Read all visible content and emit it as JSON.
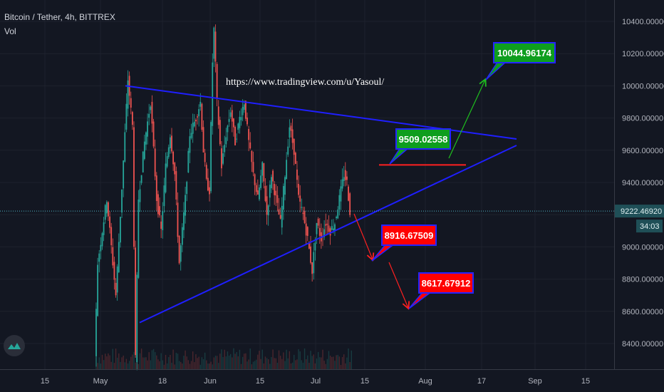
{
  "header": {
    "symbol": "Bitcoin / Tether, 4h, BITTREX",
    "volume_label": "Vol"
  },
  "watermark": "https://www.tradingview.com/u/Yasoul/",
  "logo_icon": "tradingview-mountain-icon",
  "colors": {
    "background": "#131722",
    "grid": "#1e222d",
    "up": "#26a69a",
    "down": "#ef5350",
    "trendline": "#1f1fff",
    "arrow_green": "#1fbf1f",
    "arrow_red": "#ff2020",
    "label_green": "#0e9e1e",
    "label_red": "#ff0000",
    "label_border": "#2424ff",
    "price_line": "#4fb3c3"
  },
  "chart_data": {
    "type": "candlestick",
    "title": "Bitcoin / Tether, 4h, BITTREX",
    "x_ticks": [
      "15",
      "May",
      "18",
      "Jun",
      "15",
      "Jul",
      "15",
      "Aug",
      "17",
      "Sep",
      "15"
    ],
    "y_ticks": [
      "10400.00000",
      "10200.00000",
      "10000.00000",
      "9800.00000",
      "9600.00000",
      "9400.00000",
      "9200.00000",
      "9000.00000",
      "8800.00000",
      "8600.00000",
      "8400.00000"
    ],
    "y_tick_values": [
      10400,
      10200,
      10000,
      9800,
      9600,
      9400,
      9200,
      9000,
      8800,
      8600,
      8400
    ],
    "ylim": [
      8280,
      10470
    ],
    "grid": true,
    "current_price": {
      "value": 9222.4692,
      "label": "9222.46920",
      "countdown": "34:03"
    },
    "price_path": [
      [
        0,
        8300
      ],
      [
        2,
        8900
      ],
      [
        5,
        9100
      ],
      [
        8,
        9300
      ],
      [
        11,
        9000
      ],
      [
        14,
        8700
      ],
      [
        17,
        9200
      ],
      [
        20,
        9700
      ],
      [
        22,
        10040
      ],
      [
        25,
        9750
      ],
      [
        27,
        8300
      ],
      [
        29,
        9300
      ],
      [
        33,
        9650
      ],
      [
        37,
        9900
      ],
      [
        41,
        9300
      ],
      [
        44,
        9100
      ],
      [
        47,
        9500
      ],
      [
        50,
        9700
      ],
      [
        53,
        9450
      ],
      [
        56,
        8900
      ],
      [
        60,
        9300
      ],
      [
        63,
        9700
      ],
      [
        67,
        9800
      ],
      [
        70,
        9900
      ],
      [
        72,
        9600
      ],
      [
        74,
        9400
      ],
      [
        76,
        9350
      ],
      [
        78,
        10150
      ],
      [
        79,
        10350
      ],
      [
        81,
        9900
      ],
      [
        84,
        9500
      ],
      [
        87,
        9700
      ],
      [
        90,
        9850
      ],
      [
        93,
        9650
      ],
      [
        96,
        9800
      ],
      [
        99,
        9900
      ],
      [
        102,
        9650
      ],
      [
        105,
        9450
      ],
      [
        108,
        9300
      ],
      [
        111,
        9500
      ],
      [
        114,
        9200
      ],
      [
        117,
        9450
      ],
      [
        120,
        9300
      ],
      [
        123,
        9150
      ],
      [
        126,
        9450
      ],
      [
        129,
        9750
      ],
      [
        132,
        9600
      ],
      [
        135,
        9300
      ],
      [
        138,
        9200
      ],
      [
        141,
        9050
      ],
      [
        144,
        8850
      ],
      [
        147,
        9150
      ],
      [
        150,
        9050
      ],
      [
        153,
        9150
      ],
      [
        156,
        9100
      ],
      [
        159,
        9150
      ],
      [
        162,
        9300
      ],
      [
        165,
        9450
      ],
      [
        167,
        9400
      ],
      [
        169,
        9220
      ]
    ],
    "annotations": [
      {
        "label": "10044.96174",
        "kind": "target",
        "value": 10044.96174
      },
      {
        "label": "9509.02558",
        "kind": "level",
        "value": 9509.02558
      },
      {
        "label": "8916.67509",
        "kind": "target",
        "value": 8916.67509
      },
      {
        "label": "8617.67912",
        "kind": "target",
        "value": 8617.67912
      }
    ]
  }
}
